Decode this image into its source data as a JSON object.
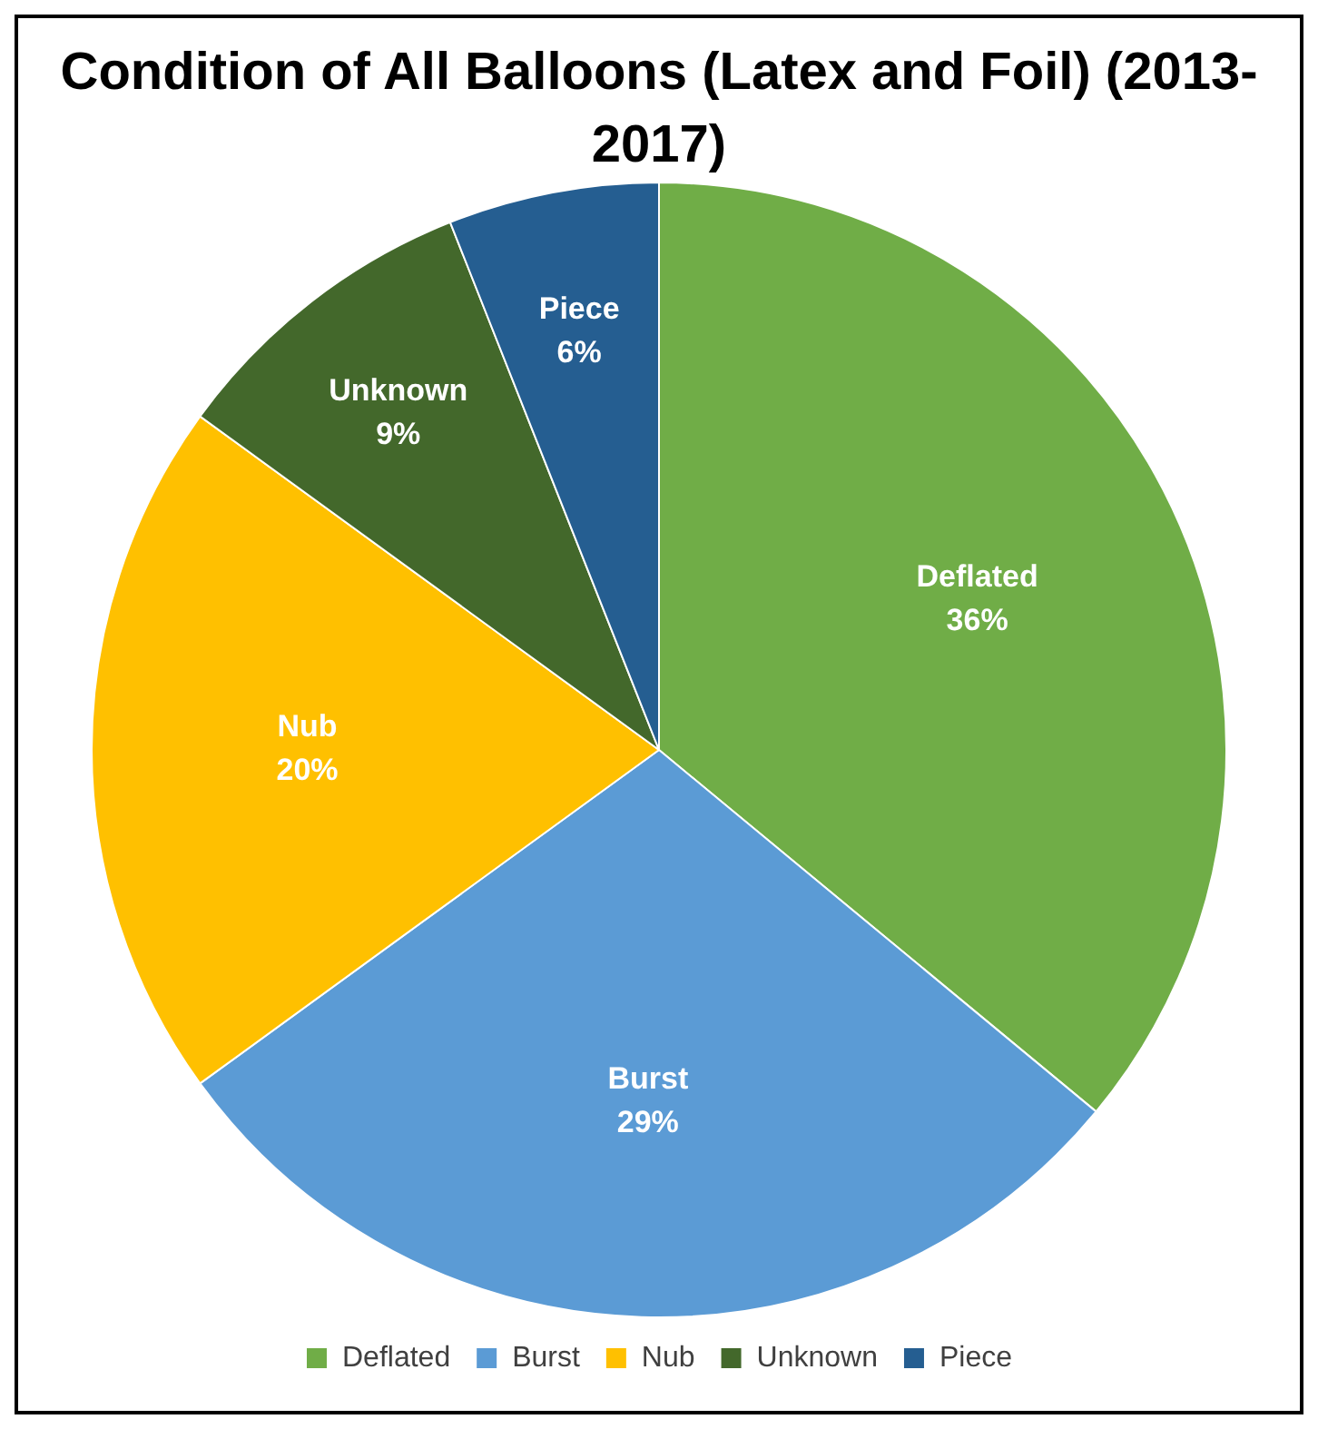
{
  "chart_data": {
    "type": "pie",
    "title": "Condition of All Balloons (Latex and Foil) (2013-2017)",
    "categories": [
      "Deflated",
      "Burst",
      "Nub",
      "Unknown",
      "Piece"
    ],
    "values": [
      36,
      29,
      20,
      9,
      6
    ],
    "value_labels": [
      "36%",
      "29%",
      "20%",
      "9%",
      "6%"
    ],
    "colors": [
      "#70ad47",
      "#5b9bd5",
      "#ffc000",
      "#43682b",
      "#255e91"
    ],
    "legend": "bottom"
  }
}
